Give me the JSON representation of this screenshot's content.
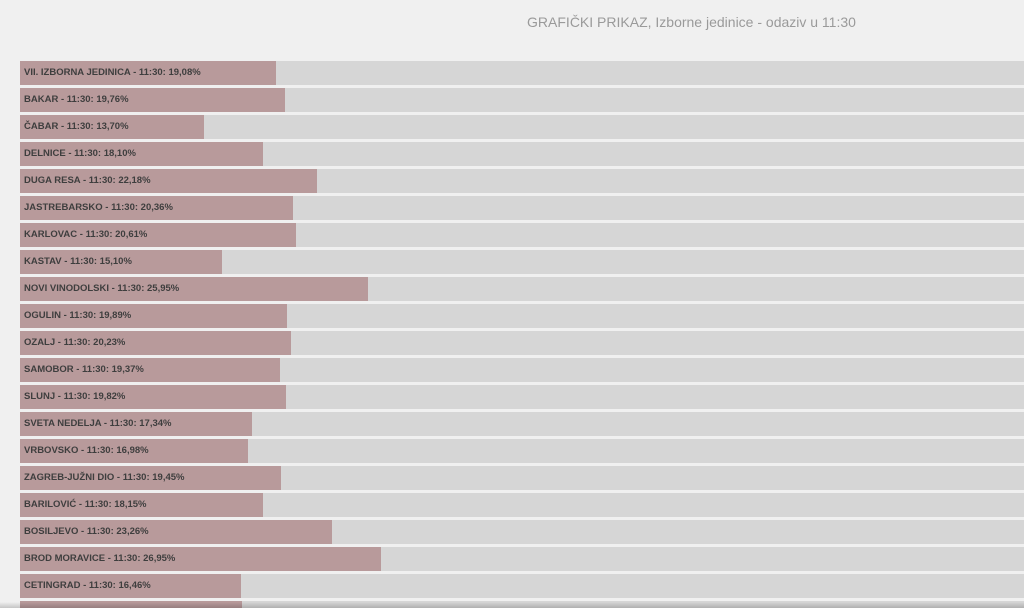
{
  "chart_data": {
    "type": "bar",
    "orientation": "horizontal",
    "title": "GRAFIČKI PRIKAZ, Izborne jedinice - odaziv u 11:30",
    "xlim": [
      0,
      100
    ],
    "grid": false,
    "bar_color": "#b89a9b",
    "track_color": "#d6d6d6",
    "bars": [
      {
        "label": "VII. IZBORNA JEDINICA - 11:30: 19,08%",
        "value": 19.08
      },
      {
        "label": "BAKAR - 11:30: 19,76%",
        "value": 19.76
      },
      {
        "label": "ČABAR - 11:30: 13,70%",
        "value": 13.7
      },
      {
        "label": "DELNICE - 11:30: 18,10%",
        "value": 18.1
      },
      {
        "label": "DUGA RESA - 11:30: 22,18%",
        "value": 22.18
      },
      {
        "label": "JASTREBARSKO - 11:30: 20,36%",
        "value": 20.36
      },
      {
        "label": "KARLOVAC - 11:30: 20,61%",
        "value": 20.61
      },
      {
        "label": "KASTAV - 11:30: 15,10%",
        "value": 15.1
      },
      {
        "label": "NOVI VINODOLSKI - 11:30: 25,95%",
        "value": 25.95
      },
      {
        "label": "OGULIN - 11:30: 19,89%",
        "value": 19.89
      },
      {
        "label": "OZALJ - 11:30: 20,23%",
        "value": 20.23
      },
      {
        "label": "SAMOBOR - 11:30: 19,37%",
        "value": 19.37
      },
      {
        "label": "SLUNJ - 11:30: 19,82%",
        "value": 19.82
      },
      {
        "label": "SVETA NEDELJA - 11:30: 17,34%",
        "value": 17.34
      },
      {
        "label": "VRBOVSKO - 11:30: 16,98%",
        "value": 16.98
      },
      {
        "label": "ZAGREB-JUŽNI DIO - 11:30: 19,45%",
        "value": 19.45
      },
      {
        "label": "BARILOVIĆ - 11:30: 18,15%",
        "value": 18.15
      },
      {
        "label": "BOSILJEVO - 11:30: 23,26%",
        "value": 23.26
      },
      {
        "label": "BROD MORAVICE - 11:30: 26,95%",
        "value": 26.95
      },
      {
        "label": "CETINGRAD - 11:30: 16,46%",
        "value": 16.46
      },
      {
        "label": "",
        "value": 16.6
      }
    ]
  }
}
